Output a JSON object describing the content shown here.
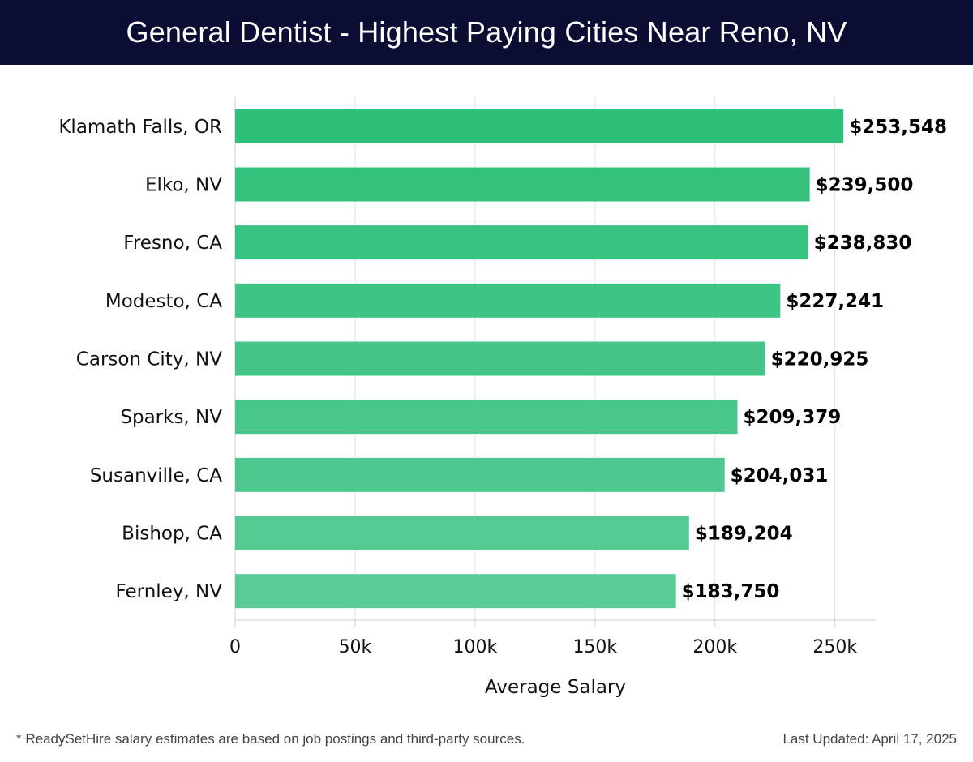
{
  "header": {
    "title": "General Dentist - Highest Paying Cities Near Reno, NV"
  },
  "footer": {
    "note": "* ReadySetHire salary estimates are based on job postings and third-party sources.",
    "updated": "Last Updated: April 17, 2025"
  },
  "chart_data": {
    "type": "bar",
    "orientation": "horizontal",
    "title": "General Dentist - Highest Paying Cities Near Reno, NV",
    "xlabel": "Average Salary",
    "ylabel": "",
    "categories": [
      "Klamath Falls, OR",
      "Elko, NV",
      "Fresno, CA",
      "Modesto, CA",
      "Carson City, NV",
      "Sparks, NV",
      "Susanville, CA",
      "Bishop, CA",
      "Fernley, NV"
    ],
    "values": [
      253548,
      239500,
      238830,
      227241,
      220925,
      209379,
      204031,
      189204,
      183750
    ],
    "value_labels": [
      "$253,548",
      "$239,500",
      "$238,830",
      "$227,241",
      "$220,925",
      "$209,379",
      "$204,031",
      "$189,204",
      "$183,750"
    ],
    "xlim": [
      0,
      267000
    ],
    "ticks": [
      0,
      50000,
      100000,
      150000,
      200000,
      250000
    ],
    "tick_labels": [
      "0",
      "50k",
      "100k",
      "150k",
      "200k",
      "250k"
    ],
    "grid": true,
    "legend": "none",
    "colors": {
      "darkest": "#2dbf77",
      "lightest": "#5acb97",
      "grid": "#e2e2e2",
      "axis": "#cccccc"
    }
  }
}
